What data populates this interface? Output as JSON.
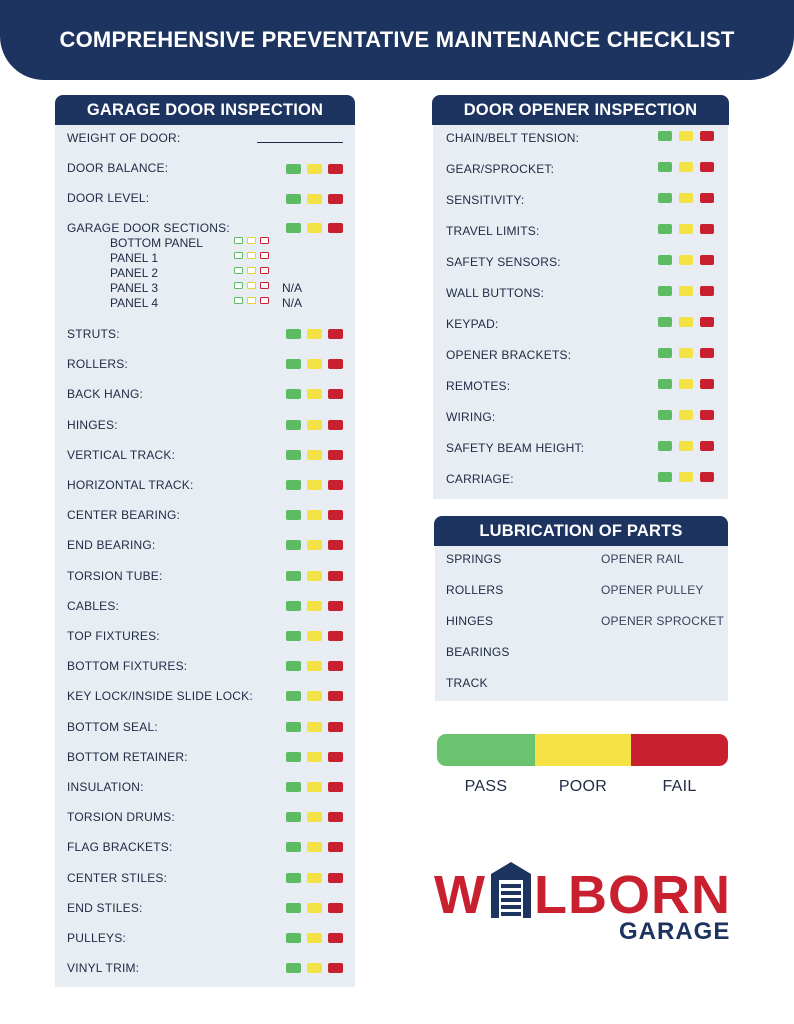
{
  "header": {
    "title": "COMPREHENSIVE PREVENTATIVE MAINTENANCE CHECKLIST"
  },
  "garage_door": {
    "title": "GARAGE DOOR INSPECTION",
    "weight_label": "WEIGHT OF DOOR:",
    "door_balance": "DOOR BALANCE:",
    "door_level": "DOOR LEVEL:",
    "sections_label": "GARAGE DOOR SECTIONS:",
    "panels": [
      "BOTTOM PANEL",
      "PANEL 1",
      "PANEL 2",
      "PANEL 3",
      "PANEL 4"
    ],
    "na_label": "N/A",
    "items": [
      "STRUTS:",
      "ROLLERS:",
      "BACK HANG:",
      "HINGES:",
      "VERTICAL TRACK:",
      "HORIZONTAL TRACK:",
      "CENTER BEARING:",
      "END BEARING:",
      "TORSION TUBE:",
      "CABLES:",
      "TOP FIXTURES:",
      "BOTTOM FIXTURES:",
      "KEY LOCK/INSIDE SLIDE LOCK:",
      "BOTTOM SEAL:",
      "BOTTOM RETAINER:",
      "INSULATION:",
      "TORSION DRUMS:",
      "FLAG BRACKETS:",
      "CENTER STILES:",
      "END STILES:",
      "PULLEYS:",
      "VINYL TRIM:"
    ]
  },
  "opener": {
    "title": "DOOR OPENER INSPECTION",
    "items": [
      "CHAIN/BELT TENSION:",
      "GEAR/SPROCKET:",
      "SENSITIVITY:",
      "TRAVEL LIMITS:",
      "SAFETY SENSORS:",
      "WALL BUTTONS:",
      "KEYPAD:",
      "OPENER BRACKETS:",
      "REMOTES:",
      "WIRING:",
      "SAFETY BEAM HEIGHT:",
      "CARRIAGE:"
    ]
  },
  "lubrication": {
    "title": "LUBRICATION OF PARTS",
    "left": [
      "SPRINGS",
      "ROLLERS",
      "HINGES",
      "BEARINGS",
      "TRACK"
    ],
    "right": [
      "OPENER RAIL",
      "OPENER PULLEY",
      "OPENER SPROCKET"
    ]
  },
  "legend": {
    "pass": "PASS",
    "poor": "POOR",
    "fail": "FAIL"
  },
  "colors": {
    "navy": "#1d3461",
    "green": "#5dbb63",
    "yellow": "#f3e245",
    "red": "#c8202f",
    "panel": "#e7edf2"
  },
  "logo": {
    "word": "WELBORN",
    "sub": "GARAGE"
  }
}
